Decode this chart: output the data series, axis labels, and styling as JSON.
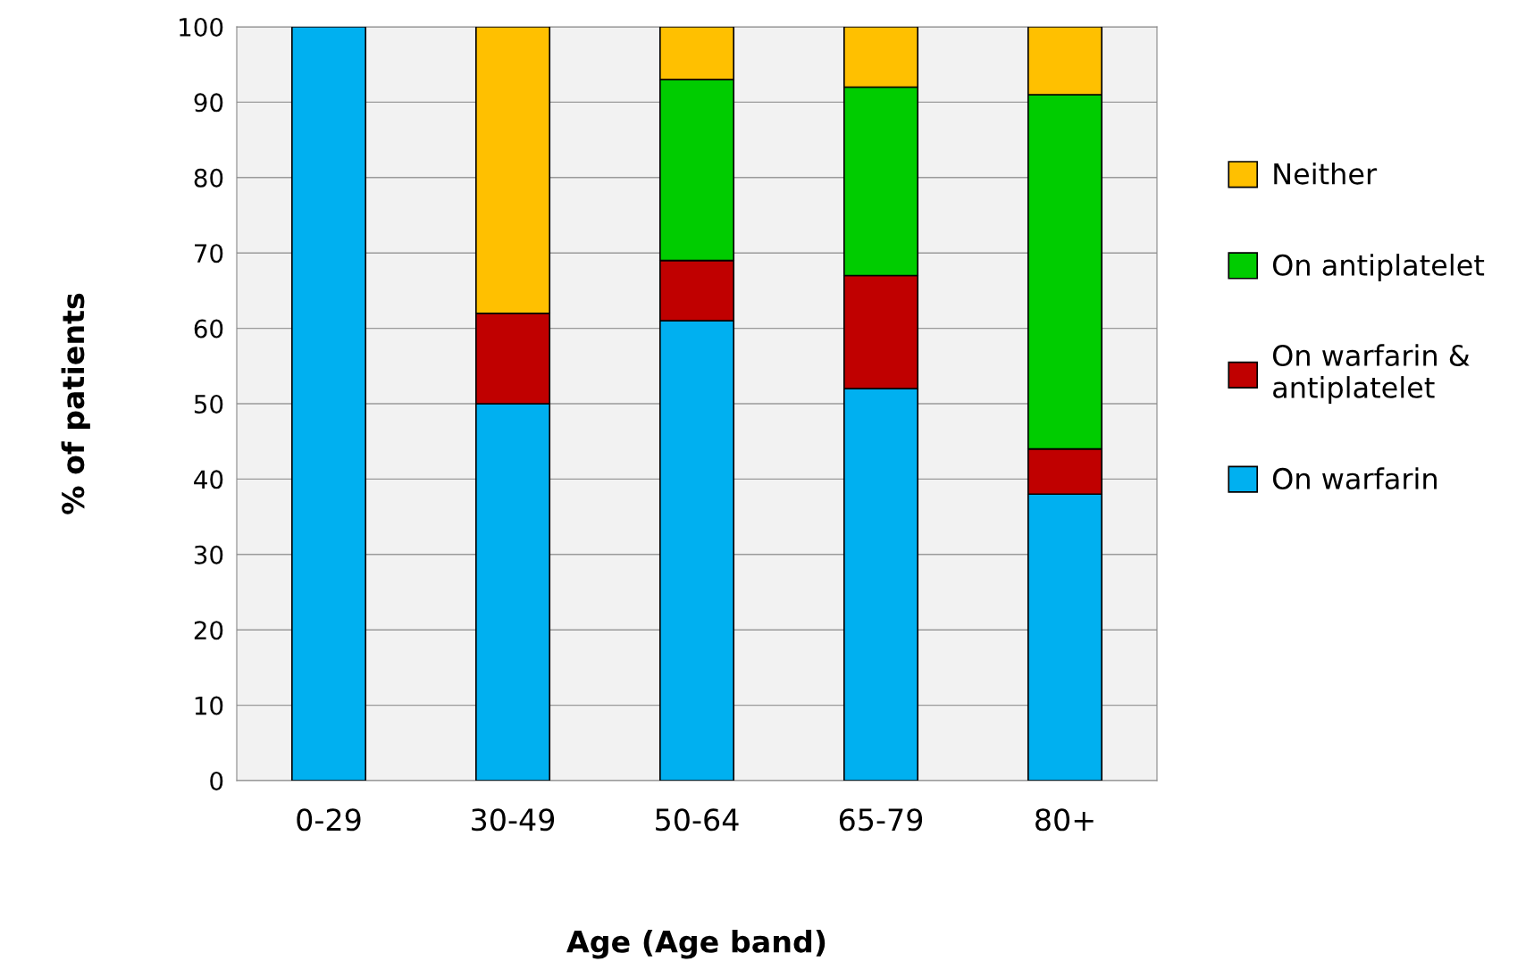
{
  "chart_data": {
    "type": "bar",
    "stacked": true,
    "xlabel": "Age (Age band)",
    "ylabel": "% of patients",
    "categories": [
      "0-29",
      "30-49",
      "50-64",
      "65-79",
      "80+"
    ],
    "series": [
      {
        "name": "On warfarin",
        "color": "#00b0f0",
        "values": [
          100,
          50,
          61,
          52,
          38
        ]
      },
      {
        "name": "On warfarin & antiplatelet",
        "color": "#c00000",
        "values": [
          null,
          12,
          8,
          15,
          6
        ]
      },
      {
        "name": "On antiplatelet",
        "color": "#00cc00",
        "values": [
          null,
          null,
          24,
          25,
          47
        ]
      },
      {
        "name": "Neither",
        "color": "#ffc000",
        "values": [
          null,
          38,
          7,
          8,
          9
        ]
      }
    ],
    "ylim": [
      0,
      100
    ],
    "yticks": [
      0,
      10,
      20,
      30,
      40,
      50,
      60,
      70,
      80,
      90,
      100
    ],
    "grid": "y",
    "legend": "right"
  }
}
